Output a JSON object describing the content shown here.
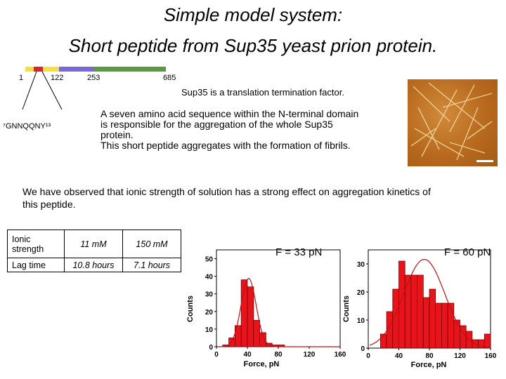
{
  "title_line1": "Simple model system:",
  "title_line2": "Short peptide from Sup35 yeast prion protein.",
  "domain_map": {
    "labels": [
      "1",
      "122",
      "253",
      "685"
    ],
    "segment_colors": [
      "#f3e03a",
      "#d6262a",
      "#f3e03a",
      "#7a67d6",
      "#5a9a3e"
    ]
  },
  "sequence_label": "⁷GNNQQNY¹³",
  "sup35_caption": "Sup35 is a translation termination factor.",
  "description": [
    "A seven amino acid sequence within the N-terminal domain",
    "is responsible for the aggregation of the whole Sup35",
    "protein.",
    "This short peptide aggregates with the formation of fibrils."
  ],
  "observation": [
    "We have observed that ionic strength of solution has a strong effect on aggregation kinetics of",
    "this peptide."
  ],
  "table": {
    "rows": [
      {
        "label": "Ionic strength",
        "v1": "11 mM",
        "v2": "150 mM"
      },
      {
        "label": "Lag time",
        "v1": "10.8 hours",
        "v2": "7.1 hours"
      }
    ]
  },
  "chart_data": [
    {
      "type": "bar",
      "annotation": "F = 33 pN",
      "xlabel": "Force, pN",
      "ylabel": "Counts",
      "x_ticks": [
        "0",
        "40",
        "80",
        "120",
        "160"
      ],
      "y_ticks": [
        "0",
        "10",
        "20",
        "30",
        "40",
        "50"
      ],
      "xlim": [
        0,
        160
      ],
      "ylim": [
        0,
        55
      ],
      "bin_width": 8,
      "bin_starts": [
        8,
        16,
        24,
        32,
        40,
        48,
        56,
        64,
        72,
        80
      ],
      "values": [
        1,
        5,
        12,
        38,
        34,
        15,
        8,
        2,
        1,
        1
      ],
      "fit_curve": "gaussian",
      "bar_color": "#e8141b"
    },
    {
      "type": "bar",
      "annotation": "F = 60 pN",
      "xlabel": "Force, pN",
      "ylabel": "Counts",
      "x_ticks": [
        "0",
        "40",
        "80",
        "120",
        "160"
      ],
      "y_ticks": [
        "0",
        "10",
        "20",
        "30"
      ],
      "xlim": [
        0,
        160
      ],
      "ylim": [
        0,
        35
      ],
      "bin_width": 8,
      "bin_starts": [
        16,
        24,
        32,
        40,
        48,
        56,
        64,
        72,
        80,
        88,
        96,
        104,
        112,
        120,
        128,
        136,
        144,
        152
      ],
      "values": [
        5,
        13,
        21,
        31,
        26,
        26,
        26,
        18,
        21,
        16,
        16,
        16,
        10,
        8,
        6,
        3,
        3,
        5
      ],
      "fit_curve": "gaussian",
      "bar_color": "#e8141b"
    }
  ]
}
